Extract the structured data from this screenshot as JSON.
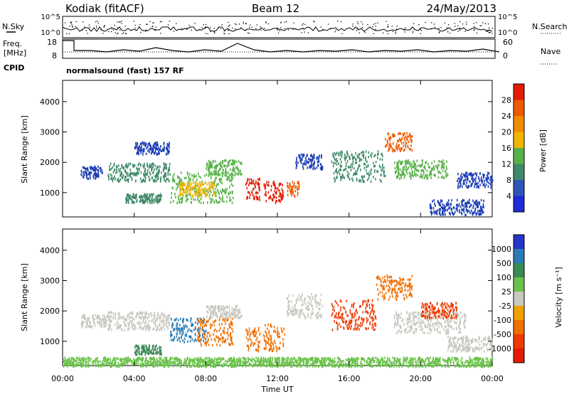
{
  "header": {
    "station": "Kodiak (fitACF)",
    "beam": "Beam 12",
    "date": "24/May/2013"
  },
  "status_panel": {
    "left_top": "N.Sky",
    "left_freq_line1": "Freq.",
    "left_freq_line2": "[MHz]",
    "left_cpid": "CPID",
    "right_top": "N.Search",
    "right_mid": "Nave",
    "nsky_ticks": [
      "10^5",
      "10^0"
    ],
    "freq_ticks": [
      "18",
      "8"
    ],
    "nave_ticks": [
      "60",
      "0"
    ],
    "cpid_text": "normalsound (fast) 157 RF"
  },
  "chart_data": [
    {
      "type": "heatmap",
      "name": "Power",
      "ylabel": "Slant Range [km]",
      "xlabel": "",
      "ylim": [
        200,
        4700
      ],
      "yticks": [
        "1000",
        "2000",
        "3000",
        "4000"
      ],
      "xlim_hours": [
        0,
        24
      ],
      "colorbar_label": "Power [dB]",
      "colorbar_ticks": [
        "4",
        "8",
        "12",
        "16",
        "20",
        "24",
        "28"
      ],
      "colorbar_colors": [
        "#1e2bd6",
        "#2f55b8",
        "#3f8a6a",
        "#58b24a",
        "#f1b400",
        "#f08a00",
        "#ee5a00",
        "#e61a00"
      ],
      "scatter_bands": [
        {
          "start_h": 1.0,
          "end_h": 2.2,
          "range_km": [
            1500,
            1900
          ],
          "color": "#1e3fb5"
        },
        {
          "start_h": 2.5,
          "end_h": 6.0,
          "range_km": [
            1400,
            2000
          ],
          "color": "#3f8a6a"
        },
        {
          "start_h": 3.5,
          "end_h": 5.5,
          "range_km": [
            700,
            1000
          ],
          "color": "#3f8a6a"
        },
        {
          "start_h": 4.0,
          "end_h": 6.0,
          "range_km": [
            2300,
            2700
          ],
          "color": "#1e3fb5"
        },
        {
          "start_h": 6.0,
          "end_h": 9.5,
          "range_km": [
            700,
            1700
          ],
          "color": "#58b24a"
        },
        {
          "start_h": 6.5,
          "end_h": 8.5,
          "range_km": [
            900,
            1400
          ],
          "color": "#f1b400"
        },
        {
          "start_h": 8.0,
          "end_h": 10.0,
          "range_km": [
            1600,
            2100
          ],
          "color": "#58b24a"
        },
        {
          "start_h": 10.2,
          "end_h": 11.0,
          "range_km": [
            800,
            1500
          ],
          "color": "#e61a00"
        },
        {
          "start_h": 11.2,
          "end_h": 12.3,
          "range_km": [
            700,
            1400
          ],
          "color": "#e61a00"
        },
        {
          "start_h": 12.5,
          "end_h": 13.2,
          "range_km": [
            900,
            1400
          ],
          "color": "#ee5a00"
        },
        {
          "start_h": 13.0,
          "end_h": 14.5,
          "range_km": [
            1800,
            2300
          ],
          "color": "#1e3fb5"
        },
        {
          "start_h": 15.0,
          "end_h": 18.0,
          "range_km": [
            1400,
            2400
          ],
          "color": "#3f8a6a"
        },
        {
          "start_h": 18.0,
          "end_h": 19.5,
          "range_km": [
            2400,
            3000
          ],
          "color": "#ee5a00"
        },
        {
          "start_h": 18.5,
          "end_h": 21.5,
          "range_km": [
            1500,
            2100
          ],
          "color": "#58b24a"
        },
        {
          "start_h": 20.5,
          "end_h": 23.5,
          "range_km": [
            300,
            800
          ],
          "color": "#1e3fb5"
        },
        {
          "start_h": 22.0,
          "end_h": 24.0,
          "range_km": [
            1200,
            1700
          ],
          "color": "#1e3fb5"
        }
      ]
    },
    {
      "type": "heatmap",
      "name": "Velocity",
      "ylabel": "Slant Range [km]",
      "xlabel": "Time UT",
      "ylim": [
        200,
        4700
      ],
      "yticks": [
        "1000",
        "2000",
        "3000",
        "4000"
      ],
      "xlim_hours": [
        0,
        24
      ],
      "xticks": [
        "00:00",
        "04:00",
        "08:00",
        "12:00",
        "16:00",
        "20:00",
        "00:00"
      ],
      "colorbar_label": "Velocity [m s⁻¹]",
      "colorbar_ticks": [
        "1000",
        "500",
        "100",
        "25",
        "-25",
        "-100",
        "-500",
        "-1000"
      ],
      "colorbar_colors": [
        "#2633c8",
        "#2a7bb5",
        "#3a8a55",
        "#6bc24a",
        "#c8c8c0",
        "#f0a000",
        "#f07000",
        "#ee3a00",
        "#e61a00"
      ],
      "scatter_bands": [
        {
          "start_h": 1.0,
          "end_h": 2.5,
          "range_km": [
            1500,
            1900
          ],
          "color": "#c8c8c0"
        },
        {
          "start_h": 2.5,
          "end_h": 6.0,
          "range_km": [
            1400,
            2000
          ],
          "color": "#c8c8c0"
        },
        {
          "start_h": 4.0,
          "end_h": 5.5,
          "range_km": [
            600,
            900
          ],
          "color": "#3a8a55"
        },
        {
          "start_h": 6.0,
          "end_h": 8.0,
          "range_km": [
            1000,
            1800
          ],
          "color": "#2a7bb5"
        },
        {
          "start_h": 7.5,
          "end_h": 9.5,
          "range_km": [
            900,
            1800
          ],
          "color": "#f07000"
        },
        {
          "start_h": 8.0,
          "end_h": 10.0,
          "range_km": [
            1800,
            2200
          ],
          "color": "#c8c8c0"
        },
        {
          "start_h": 10.2,
          "end_h": 11.0,
          "range_km": [
            700,
            1500
          ],
          "color": "#f07000"
        },
        {
          "start_h": 11.2,
          "end_h": 12.4,
          "range_km": [
            700,
            1600
          ],
          "color": "#f07000"
        },
        {
          "start_h": 12.5,
          "end_h": 14.5,
          "range_km": [
            1800,
            2600
          ],
          "color": "#c8c8c0"
        },
        {
          "start_h": 15.0,
          "end_h": 17.5,
          "range_km": [
            1400,
            2400
          ],
          "color": "#ee3a00"
        },
        {
          "start_h": 17.5,
          "end_h": 19.5,
          "range_km": [
            2400,
            3200
          ],
          "color": "#f07000"
        },
        {
          "start_h": 18.5,
          "end_h": 22.5,
          "range_km": [
            1300,
            2000
          ],
          "color": "#c8c8c0"
        },
        {
          "start_h": 20.0,
          "end_h": 22.0,
          "range_km": [
            1800,
            2300
          ],
          "color": "#ee3a00"
        },
        {
          "start_h": 21.5,
          "end_h": 24.0,
          "range_km": [
            700,
            1200
          ],
          "color": "#c8c8c0"
        },
        {
          "start_h": 0.0,
          "end_h": 24.0,
          "range_km": [
            200,
            500
          ],
          "color": "#6bc24a"
        }
      ]
    }
  ]
}
